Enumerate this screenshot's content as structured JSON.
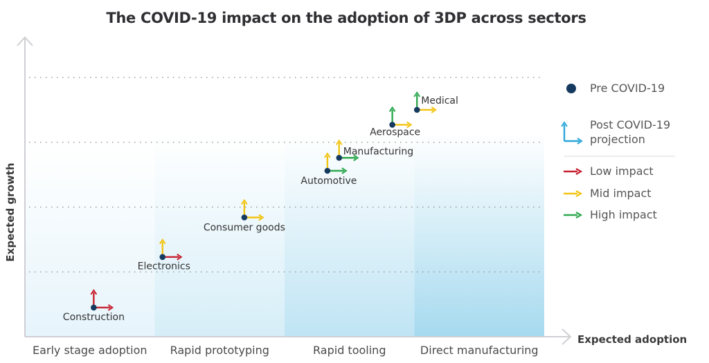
{
  "chart_data": {
    "type": "scatter",
    "title": "The COVID-19 impact on the adoption of 3DP across sectors",
    "xlabel": "Expected adoption",
    "ylabel": "Expected growth",
    "categories": [
      "Early stage adoption",
      "Rapid prototyping",
      "Rapid tooling",
      "Direct manufacturing"
    ],
    "xlim": [
      0,
      4
    ],
    "ylim": [
      0,
      4
    ],
    "gridlines_y": [
      1,
      2,
      3,
      4
    ],
    "points": [
      {
        "name": "Construction",
        "x": 0.53,
        "y": 0.45,
        "impact_x": "low",
        "impact_y": "low"
      },
      {
        "name": "Electronics",
        "x": 1.06,
        "y": 1.23,
        "impact_x": "low",
        "impact_y": "mid"
      },
      {
        "name": "Consumer goods",
        "x": 1.69,
        "y": 1.84,
        "impact_x": "mid",
        "impact_y": "mid"
      },
      {
        "name": "Automotive",
        "x": 2.33,
        "y": 2.56,
        "impact_x": "high",
        "impact_y": "mid"
      },
      {
        "name": "Manufacturing",
        "x": 2.42,
        "y": 2.76,
        "impact_x": "high",
        "impact_y": "mid"
      },
      {
        "name": "Aerospace",
        "x": 2.83,
        "y": 3.27,
        "impact_x": "mid",
        "impact_y": "high"
      },
      {
        "name": "Medical",
        "x": 3.02,
        "y": 3.5,
        "impact_x": "mid",
        "impact_y": "high"
      }
    ],
    "legend": {
      "placement": "right",
      "pre": "Pre COVID-19",
      "post_line1": "Post COVID-19",
      "post_line2": "projection",
      "low": "Low impact",
      "mid": "Mid impact",
      "high": "High impact"
    },
    "colors": {
      "dot": "#163a5f",
      "low": "#c8202f",
      "mid": "#f2c412",
      "high": "#2fa84f",
      "post": "#2aa6d8",
      "axis": "#cfcfd4",
      "grid": "#8a8a8a"
    }
  }
}
